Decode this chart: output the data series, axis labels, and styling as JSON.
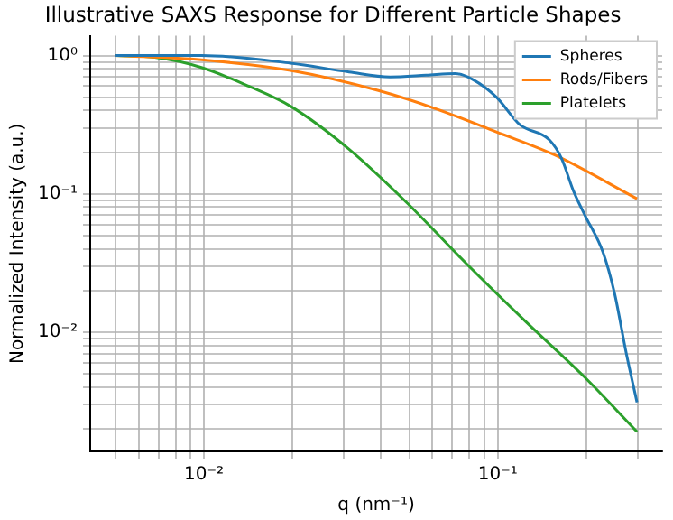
{
  "chart_data": {
    "type": "line",
    "title": "Illustrative SAXS Response for Different Particle Shapes",
    "xlabel": "q (nm⁻¹)",
    "ylabel": "Normalized Intensity (a.u.)",
    "log": "xy",
    "grid": true,
    "legend": "top right",
    "marker": "none",
    "line_style": "solid",
    "xlim": [
      0.0041,
      0.363
    ],
    "ylim": [
      0.00137,
      1.39
    ],
    "xticks": [
      {
        "value": 0.005,
        "label": null
      },
      {
        "value": 0.006,
        "label": null
      },
      {
        "value": 0.007,
        "label": null
      },
      {
        "value": 0.008,
        "label": null
      },
      {
        "value": 0.009,
        "label": null
      },
      {
        "value": 0.01,
        "label": "10⁻²"
      },
      {
        "value": 0.02,
        "label": null
      },
      {
        "value": 0.03,
        "label": null
      },
      {
        "value": 0.04,
        "label": null
      },
      {
        "value": 0.05,
        "label": null
      },
      {
        "value": 0.06,
        "label": null
      },
      {
        "value": 0.07,
        "label": null
      },
      {
        "value": 0.08,
        "label": null
      },
      {
        "value": 0.09,
        "label": null
      },
      {
        "value": 0.1,
        "label": "10⁻¹"
      },
      {
        "value": 0.2,
        "label": null
      },
      {
        "value": 0.3,
        "label": null
      }
    ],
    "yticks": [
      {
        "value": 0.002,
        "label": null
      },
      {
        "value": 0.003,
        "label": null
      },
      {
        "value": 0.004,
        "label": null
      },
      {
        "value": 0.005,
        "label": null
      },
      {
        "value": 0.006,
        "label": null
      },
      {
        "value": 0.007,
        "label": null
      },
      {
        "value": 0.008,
        "label": null
      },
      {
        "value": 0.009,
        "label": null
      },
      {
        "value": 0.01,
        "label": "10⁻²"
      },
      {
        "value": 0.02,
        "label": null
      },
      {
        "value": 0.03,
        "label": null
      },
      {
        "value": 0.04,
        "label": null
      },
      {
        "value": 0.05,
        "label": null
      },
      {
        "value": 0.06,
        "label": null
      },
      {
        "value": 0.07,
        "label": null
      },
      {
        "value": 0.08,
        "label": null
      },
      {
        "value": 0.09,
        "label": null
      },
      {
        "value": 0.1,
        "label": "10⁻¹"
      },
      {
        "value": 0.2,
        "label": null
      },
      {
        "value": 0.3,
        "label": null
      },
      {
        "value": 0.4,
        "label": null
      },
      {
        "value": 0.5,
        "label": null
      },
      {
        "value": 0.6,
        "label": null
      },
      {
        "value": 0.7,
        "label": null
      },
      {
        "value": 0.8,
        "label": null
      },
      {
        "value": 0.9,
        "label": null
      },
      {
        "value": 1,
        "label": "10⁰"
      }
    ],
    "series": [
      {
        "name": "Spheres",
        "color": "#1f77b4",
        "x": [
          0.005,
          0.0098,
          0.0197,
          0.0312,
          0.043,
          0.057,
          0.0717,
          0.0823,
          0.099,
          0.119,
          0.15,
          0.165,
          0.181,
          0.198,
          0.228,
          0.25,
          0.274,
          0.298
        ],
        "values": [
          1.0,
          1.0,
          0.88,
          0.76,
          0.7,
          0.72,
          0.74,
          0.67,
          0.5,
          0.316,
          0.245,
          0.18,
          0.105,
          0.07,
          0.038,
          0.019,
          0.007,
          0.0031
        ]
      },
      {
        "name": "Rods/Fibers",
        "color": "#ff7f0e",
        "x": [
          0.005,
          0.0098,
          0.0197,
          0.039,
          0.062,
          0.099,
          0.157,
          0.298
        ],
        "values": [
          1.0,
          0.93,
          0.78,
          0.56,
          0.41,
          0.28,
          0.19,
          0.092
        ]
      },
      {
        "name": "Platelets",
        "color": "#2ca02c",
        "x": [
          0.005,
          0.0068,
          0.0098,
          0.0142,
          0.0197,
          0.0312,
          0.0494,
          0.0785,
          0.124,
          0.198,
          0.298
        ],
        "values": [
          1.0,
          0.97,
          0.82,
          0.6,
          0.43,
          0.21,
          0.085,
          0.031,
          0.012,
          0.0047,
          0.0019
        ]
      }
    ]
  }
}
